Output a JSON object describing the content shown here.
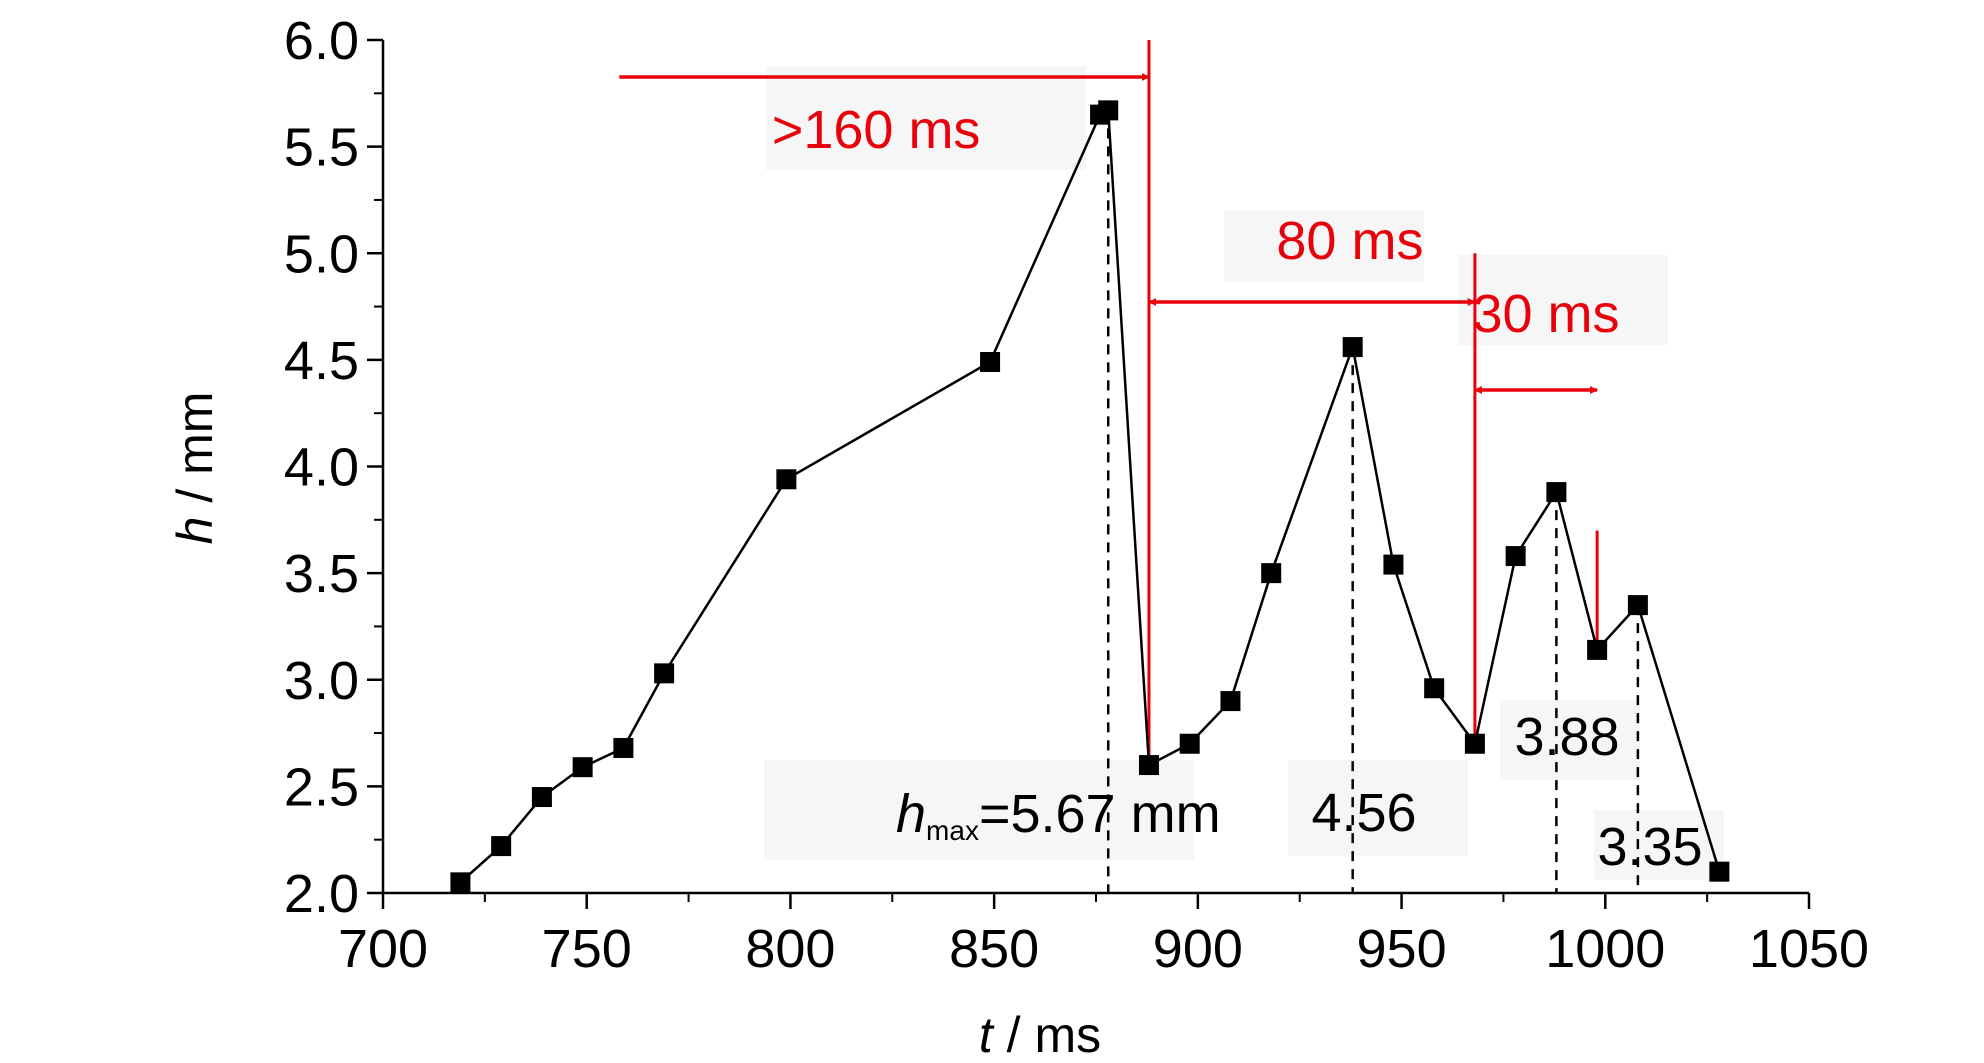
{
  "chart_data": {
    "type": "line",
    "xlabel": {
      "var": "t",
      "unit": " / ms"
    },
    "ylabel": {
      "var": "h",
      "unit": " / mm"
    },
    "xlim": [
      700,
      1050
    ],
    "ylim": [
      2.0,
      6.0
    ],
    "x_ticks": [
      "700",
      "750",
      "800",
      "850",
      "900",
      "950",
      "1000",
      "1050"
    ],
    "y_ticks": [
      "2.0",
      "2.5",
      "3.0",
      "3.5",
      "4.0",
      "4.5",
      "5.0",
      "5.5",
      "6.0"
    ],
    "series": [
      {
        "x": [
          719,
          729,
          739,
          749,
          759,
          769,
          799,
          849,
          876,
          878,
          888,
          898,
          908,
          918,
          938,
          948,
          958,
          968,
          978,
          988,
          998,
          1008,
          1028
        ],
        "y": [
          2.05,
          2.22,
          2.45,
          2.59,
          2.68,
          3.03,
          3.94,
          4.49,
          5.65,
          5.67,
          2.6,
          2.7,
          2.9,
          3.5,
          4.56,
          3.54,
          2.96,
          2.7,
          3.58,
          3.88,
          3.14,
          3.35,
          2.1
        ]
      }
    ],
    "marker": "square",
    "line_color": "#000000",
    "accent_color": "#e8000b",
    "dashed_drops": [
      878,
      938,
      988,
      1008
    ],
    "annotations": {
      "hmax": {
        "var": "h",
        "sub": "max",
        "text": "=5.67 mm"
      },
      "peak2": "4.56",
      "peak3": "3.88",
      "peak4": "3.35"
    },
    "intervals": [
      {
        "label": ">160 ms",
        "from": 758,
        "to": 888,
        "style": "right-arrow"
      },
      {
        "label": "80 ms",
        "from": 888,
        "to": 968,
        "style": "double-arrow"
      },
      {
        "label": "30 ms",
        "from": 968,
        "to": 998,
        "style": "double-arrow"
      }
    ],
    "red_vlines": [
      {
        "x": 888,
        "y_top": 6.0,
        "y_bottom": 2.6
      },
      {
        "x": 968,
        "y_top": 5.0,
        "y_bottom": 2.7
      },
      {
        "x": 998,
        "y_top": 3.7,
        "y_bottom": 3.14
      }
    ]
  }
}
